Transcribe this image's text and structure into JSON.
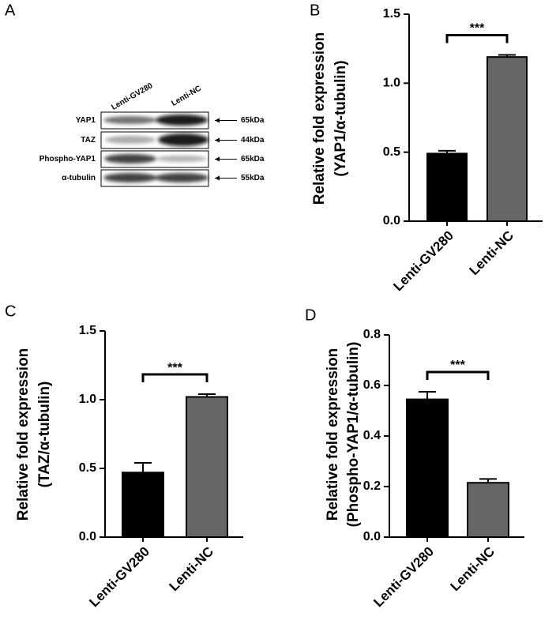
{
  "blot": {
    "panel_label": "A",
    "lanes": [
      "Lenti-GV280",
      "Lenti-NC"
    ],
    "bands": [
      {
        "name": "YAP1",
        "size": "65kDa"
      },
      {
        "name": "TAZ",
        "size": "44kDa"
      },
      {
        "name": "Phospho-YAP1",
        "size": "65kDa"
      },
      {
        "name": "α-tubulin",
        "size": "55kDa"
      }
    ]
  },
  "chart_data": [
    {
      "type": "bar",
      "panel_label": "B",
      "ylabel": [
        "Relative fold expression",
        "(YAP1/α-tubulin)"
      ],
      "categories": [
        "Lenti-GV280",
        "Lenti-NC"
      ],
      "values": [
        0.49,
        1.19
      ],
      "errors": [
        0.02,
        0.015
      ],
      "colors": [
        "#000000",
        "#666666"
      ],
      "annotation": "***",
      "ylim": [
        0,
        1.5
      ],
      "yticks": [
        {
          "value": 0,
          "label": "0.0"
        },
        0.5,
        {
          "value": 1,
          "label": "1.0"
        },
        1.5
      ]
    },
    {
      "type": "bar",
      "panel_label": "C",
      "ylabel": [
        "Relative fold expression",
        "(TAZ/α-tubulin)"
      ],
      "categories": [
        "Lenti-GV280",
        "Lenti-NC"
      ],
      "values": [
        0.47,
        1.02
      ],
      "errors": [
        0.07,
        0.02
      ],
      "colors": [
        "#000000",
        "#666666"
      ],
      "annotation": "***",
      "ylim": [
        0,
        1.5
      ],
      "yticks": [
        {
          "value": 0,
          "label": "0.0"
        },
        0.5,
        {
          "value": 1,
          "label": "1.0"
        },
        1.5
      ]
    },
    {
      "type": "bar",
      "panel_label": "D",
      "ylabel": [
        "Relative fold expression",
        "(Phospho-YAP1/α-tubulin)"
      ],
      "categories": [
        "Lenti-GV280",
        "Lenti-NC"
      ],
      "values": [
        0.545,
        0.215
      ],
      "errors": [
        0.03,
        0.015
      ],
      "colors": [
        "#000000",
        "#666666"
      ],
      "annotation": "***",
      "ylim": [
        0,
        0.8
      ],
      "yticks": [
        {
          "value": 0,
          "label": "0.0"
        },
        0.2,
        0.4,
        0.6,
        0.8
      ]
    }
  ]
}
